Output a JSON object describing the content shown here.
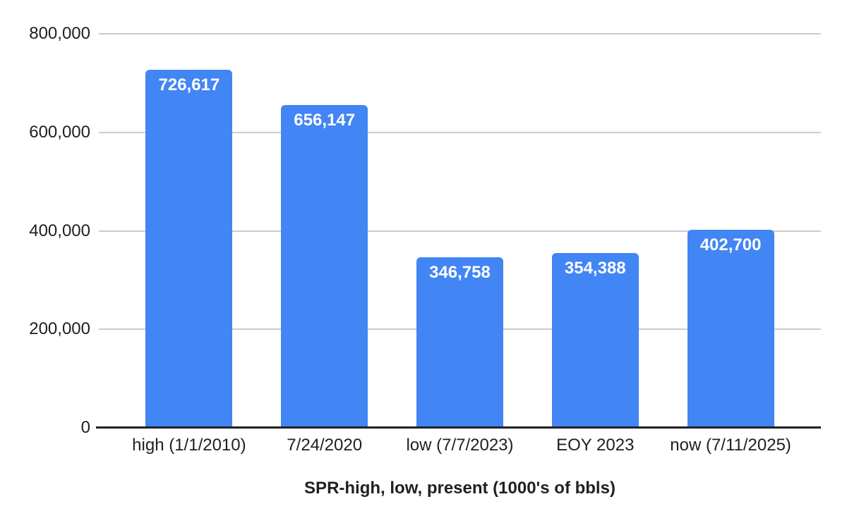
{
  "chart_data": {
    "type": "bar",
    "title": "SPR-high, low, present (1000's of bbls)",
    "title_position": "bottom",
    "categories": [
      "high (1/1/2010)",
      "7/24/2020",
      "low (7/7/2023)",
      "EOY 2023",
      "now (7/11/2025)"
    ],
    "values": [
      726617,
      656147,
      346758,
      354388,
      402700
    ],
    "value_labels": [
      "726,617",
      "656,147",
      "346,758",
      "354,388",
      "402,700"
    ],
    "ylim": [
      0,
      800000
    ],
    "yticks": [
      {
        "value": 0,
        "label": "0"
      },
      {
        "value": 200000,
        "label": "200,000"
      },
      {
        "value": 400000,
        "label": "400,000"
      },
      {
        "value": 600000,
        "label": "600,000"
      },
      {
        "value": 800000,
        "label": "800,000"
      }
    ],
    "xlabel": "",
    "ylabel": "",
    "grid": true,
    "legend_position": "none",
    "colors": {
      "bar": "#4285f4",
      "value_label_text": "#ffffff",
      "gridline": "#cccccc",
      "axis_line": "#212121",
      "tick_text": "#1f1f1f",
      "title_text": "#212121",
      "background": "#ffffff"
    }
  }
}
